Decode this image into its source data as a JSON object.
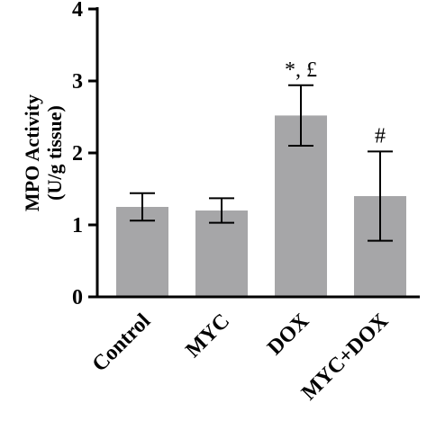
{
  "chart_data": {
    "type": "bar",
    "title": "",
    "xlabel": "",
    "ylabel_line1": "MPO Activity",
    "ylabel_line2": "(U/g tissue)",
    "categories": [
      "Control",
      "MYC",
      "DOX",
      "MYC+DOX"
    ],
    "values": [
      1.25,
      1.2,
      2.52,
      1.4
    ],
    "errors": [
      0.19,
      0.17,
      0.42,
      0.62
    ],
    "annotations": [
      "",
      "",
      "*, £",
      "#"
    ],
    "ylim": [
      0,
      4
    ],
    "yticks": [
      "0",
      "1",
      "2",
      "3",
      "4"
    ],
    "grid": false,
    "bar_color": "#a6a6a8",
    "axis_color": "#000000"
  }
}
